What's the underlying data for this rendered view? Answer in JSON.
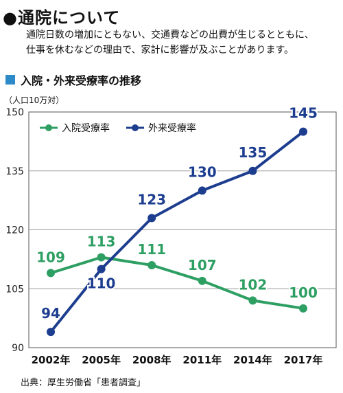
{
  "header": {
    "title": "●通院について",
    "description_lines": [
      "通院日数の増加にともない、交通費などの出費が生じるとともに、",
      "仕事を休むなどの理由で、家計に影響が及ぶことがあります。"
    ]
  },
  "section": {
    "label": "入院・外来受療率の推移",
    "marker_color": "#2c8ac9"
  },
  "chart_data": {
    "type": "line",
    "unit_label": "（人口10万対）",
    "categories": [
      "2002年",
      "2005年",
      "2008年",
      "2011年",
      "2014年",
      "2017年"
    ],
    "ylim": [
      90,
      150
    ],
    "yticks": [
      90,
      105,
      120,
      135,
      150
    ],
    "grid": true,
    "legend_position": "top-left",
    "series": [
      {
        "name": "入院受療率",
        "color": "#2e9f63",
        "values": [
          109,
          113,
          111,
          107,
          102,
          100
        ]
      },
      {
        "name": "外来受療率",
        "color": "#1d3d8f",
        "values": [
          94,
          110,
          123,
          130,
          135,
          145
        ]
      }
    ]
  },
  "source": "出典：厚生労働省「患者調査」"
}
